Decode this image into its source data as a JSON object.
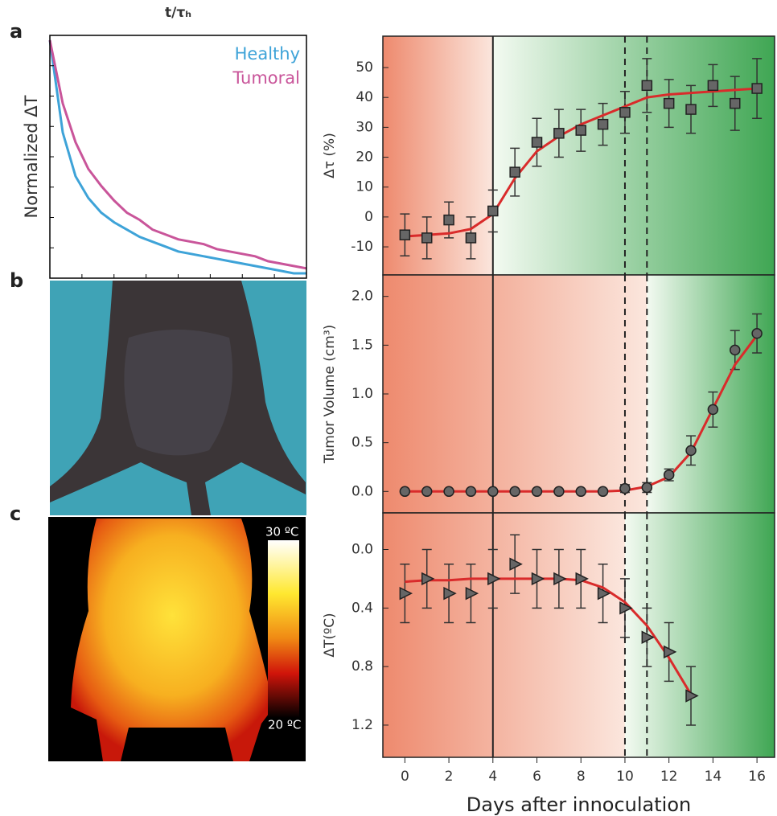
{
  "panel_labels": [
    "a",
    "b",
    "c"
  ],
  "thermal_scale": {
    "max_label": "30 ºC",
    "min_label": "20 ºC"
  },
  "chart_data": [
    {
      "type": "line",
      "xlabel": "t/τₕ",
      "ylabel": "Normalized ΔT",
      "x": [
        0,
        0.05,
        0.1,
        0.15,
        0.2,
        0.25,
        0.3,
        0.35,
        0.4,
        0.45,
        0.5,
        0.55,
        0.6,
        0.65,
        0.7,
        0.75,
        0.8,
        0.85,
        0.9,
        0.95,
        1
      ],
      "xlim": [
        0,
        1
      ],
      "ylim": [
        0,
        1
      ],
      "series": [
        {
          "name": "Healthy",
          "color": "#3ea3d8",
          "values": [
            0.98,
            0.6,
            0.42,
            0.33,
            0.27,
            0.23,
            0.2,
            0.17,
            0.15,
            0.13,
            0.11,
            0.1,
            0.09,
            0.08,
            0.07,
            0.06,
            0.05,
            0.04,
            0.03,
            0.02,
            0.02
          ]
        },
        {
          "name": "Tumoral",
          "color": "#c9559a",
          "values": [
            0.98,
            0.72,
            0.56,
            0.45,
            0.38,
            0.32,
            0.27,
            0.24,
            0.2,
            0.18,
            0.16,
            0.15,
            0.14,
            0.12,
            0.11,
            0.1,
            0.09,
            0.07,
            0.06,
            0.05,
            0.04
          ]
        }
      ]
    },
    {
      "type": "errorbar",
      "ylabel": "Δτ (%)",
      "marker": "square",
      "split": 4,
      "vlines_solid": [
        4
      ],
      "vlines_dashed": [
        10,
        11
      ],
      "x": [
        0,
        1,
        2,
        3,
        4,
        5,
        6,
        7,
        8,
        9,
        10,
        11,
        12,
        13,
        14,
        15,
        16
      ],
      "values": [
        -6,
        -7,
        -1,
        -7,
        2,
        15,
        25,
        28,
        29,
        31,
        35,
        44,
        38,
        36,
        44,
        38,
        43
      ],
      "errors": [
        7,
        7,
        6,
        7,
        7,
        8,
        8,
        8,
        7,
        7,
        7,
        9,
        8,
        8,
        7,
        9,
        10
      ],
      "fit": {
        "color": "#d92b2b",
        "x": [
          0,
          1,
          2,
          3,
          4,
          5,
          6,
          7,
          8,
          9,
          10,
          11,
          12,
          13,
          14,
          15,
          16
        ],
        "values": [
          -6.5,
          -6,
          -5.5,
          -4,
          1,
          13,
          22,
          27,
          31,
          34,
          37,
          40,
          41,
          41.5,
          42,
          42.5,
          43
        ]
      },
      "xlim": [
        -1,
        16.8
      ],
      "ylim": [
        -19.4,
        60.5
      ],
      "yticks": [
        -10,
        0,
        10,
        20,
        30,
        40,
        50
      ]
    },
    {
      "type": "errorbar",
      "ylabel": "Tumor Volume (cm³)",
      "marker": "circle",
      "split": 11,
      "vlines_solid": [
        4
      ],
      "vlines_dashed": [
        10,
        11
      ],
      "x": [
        0,
        1,
        2,
        3,
        4,
        5,
        6,
        7,
        8,
        9,
        10,
        11,
        12,
        13,
        14,
        15,
        16
      ],
      "values": [
        0,
        0,
        0,
        0,
        0,
        0,
        0,
        0,
        0,
        0,
        0.03,
        0.04,
        0.17,
        0.42,
        0.84,
        1.45,
        1.62
      ],
      "errors": [
        0.02,
        0.02,
        0.02,
        0.02,
        0.02,
        0.02,
        0.02,
        0.02,
        0.02,
        0.02,
        0.04,
        0.05,
        0.06,
        0.15,
        0.18,
        0.2,
        0.2
      ],
      "fit": {
        "color": "#d92b2b",
        "x": [
          0,
          1,
          2,
          3,
          4,
          5,
          6,
          7,
          8,
          9,
          10,
          11,
          12,
          13,
          14,
          15,
          16
        ],
        "values": [
          0,
          0,
          0,
          0,
          0,
          0,
          0,
          0,
          0,
          0,
          0.01,
          0.05,
          0.15,
          0.4,
          0.85,
          1.3,
          1.6
        ]
      },
      "xlim": [
        -1,
        16.8
      ],
      "ylim": [
        -0.22,
        2.22
      ],
      "yticks": [
        {
          "value": 0,
          "label": "0.0"
        },
        {
          "value": 0.5,
          "label": "0.5"
        },
        {
          "value": 1,
          "label": "1.0"
        },
        {
          "value": 1.5,
          "label": "1.5"
        },
        {
          "value": 2,
          "label": "2.0"
        }
      ]
    },
    {
      "type": "errorbar",
      "ylabel": "ΔT(ºC)",
      "xlabel": "Days after innoculation",
      "marker": "triangle",
      "split": 10,
      "inverted": true,
      "vlines_solid": [
        4
      ],
      "vlines_dashed": [
        10,
        11
      ],
      "x": [
        0,
        1,
        2,
        3,
        4,
        5,
        6,
        7,
        8,
        9,
        10,
        11,
        12,
        13
      ],
      "values": [
        0.3,
        0.2,
        0.3,
        0.3,
        0.2,
        0.1,
        0.2,
        0.2,
        0.2,
        0.3,
        0.4,
        0.6,
        0.7,
        1.0
      ],
      "errors": [
        0.2,
        0.2,
        0.2,
        0.2,
        0.2,
        0.2,
        0.2,
        0.2,
        0.2,
        0.2,
        0.2,
        0.2,
        0.2,
        0.2
      ],
      "fit": {
        "color": "#d92b2b",
        "x": [
          0,
          1,
          2,
          3,
          4,
          5,
          6,
          7,
          8,
          9,
          10,
          11,
          12,
          13
        ],
        "values": [
          0.22,
          0.21,
          0.21,
          0.2,
          0.2,
          0.2,
          0.2,
          0.2,
          0.21,
          0.26,
          0.36,
          0.52,
          0.74,
          0.99
        ]
      },
      "xlim": [
        -1,
        16.8
      ],
      "ylim": [
        -0.25,
        1.42
      ],
      "xticks": [
        0,
        2,
        4,
        6,
        8,
        10,
        12,
        14,
        16
      ],
      "yticks": [
        {
          "value": 0,
          "label": "0.0"
        },
        {
          "value": 0.4,
          "label": "0.4"
        },
        {
          "value": 0.8,
          "label": "0.8"
        },
        {
          "value": 1.2,
          "label": "1.2"
        }
      ]
    }
  ]
}
